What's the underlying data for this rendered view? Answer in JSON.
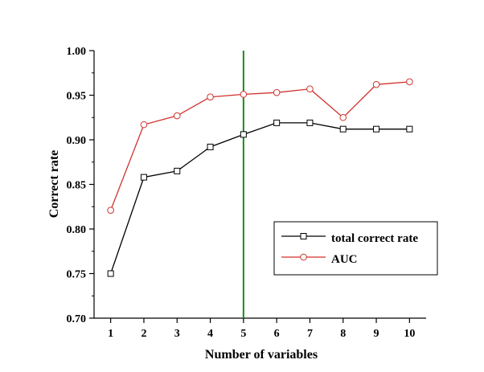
{
  "chart_data": {
    "type": "line",
    "xlabel": "Number of variables",
    "ylabel": "Correct rate",
    "x": [
      1,
      2,
      3,
      4,
      5,
      6,
      7,
      8,
      9,
      10
    ],
    "xlim": [
      0.5,
      10.5
    ],
    "ylim": [
      0.7,
      1.0
    ],
    "yticks": [
      "0.70",
      "0.75",
      "0.80",
      "0.85",
      "0.90",
      "0.95",
      "1.00"
    ],
    "xticks": [
      "1",
      "2",
      "3",
      "4",
      "5",
      "6",
      "7",
      "8",
      "9",
      "10"
    ],
    "grid": false,
    "legend_position": "center-right",
    "series": [
      {
        "name": "total correct rate",
        "color": "#000000",
        "marker": "square",
        "values": [
          0.75,
          0.858,
          0.865,
          0.892,
          0.906,
          0.919,
          0.919,
          0.912,
          0.912,
          0.912
        ]
      },
      {
        "name": "AUC",
        "color": "#d0312d",
        "marker": "circle",
        "values": [
          0.821,
          0.917,
          0.927,
          0.948,
          0.951,
          0.953,
          0.957,
          0.925,
          0.962,
          0.965
        ]
      }
    ],
    "reference_line": {
      "axis": "x",
      "value": 5,
      "color": "#1a8a1a"
    }
  }
}
